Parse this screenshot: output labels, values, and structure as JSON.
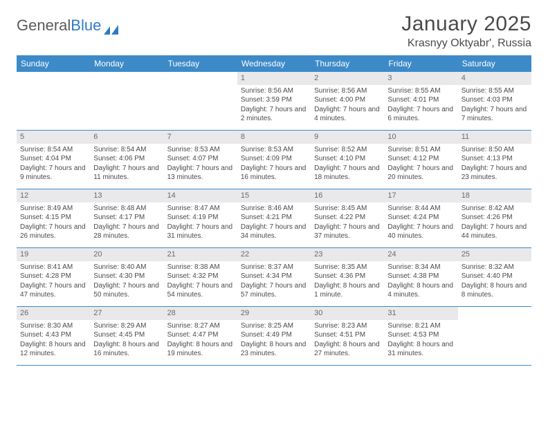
{
  "logo": {
    "text_gray": "General",
    "text_blue": "Blue"
  },
  "title": "January 2025",
  "location": "Krasnyy Oktyabr', Russia",
  "colors": {
    "header_blue": "#3d8ac9",
    "daynum_bg": "#e9e9eb",
    "text": "#4a4a4a",
    "rule": "#3d8ac9"
  },
  "days_of_week": [
    "Sunday",
    "Monday",
    "Tuesday",
    "Wednesday",
    "Thursday",
    "Friday",
    "Saturday"
  ],
  "weeks": [
    [
      {
        "empty": true
      },
      {
        "empty": true
      },
      {
        "empty": true
      },
      {
        "n": "1",
        "sunrise": "8:56 AM",
        "sunset": "3:59 PM",
        "dl": "7 hours and 2 minutes."
      },
      {
        "n": "2",
        "sunrise": "8:56 AM",
        "sunset": "4:00 PM",
        "dl": "7 hours and 4 minutes."
      },
      {
        "n": "3",
        "sunrise": "8:55 AM",
        "sunset": "4:01 PM",
        "dl": "7 hours and 6 minutes."
      },
      {
        "n": "4",
        "sunrise": "8:55 AM",
        "sunset": "4:03 PM",
        "dl": "7 hours and 7 minutes."
      }
    ],
    [
      {
        "n": "5",
        "sunrise": "8:54 AM",
        "sunset": "4:04 PM",
        "dl": "7 hours and 9 minutes."
      },
      {
        "n": "6",
        "sunrise": "8:54 AM",
        "sunset": "4:06 PM",
        "dl": "7 hours and 11 minutes."
      },
      {
        "n": "7",
        "sunrise": "8:53 AM",
        "sunset": "4:07 PM",
        "dl": "7 hours and 13 minutes."
      },
      {
        "n": "8",
        "sunrise": "8:53 AM",
        "sunset": "4:09 PM",
        "dl": "7 hours and 16 minutes."
      },
      {
        "n": "9",
        "sunrise": "8:52 AM",
        "sunset": "4:10 PM",
        "dl": "7 hours and 18 minutes."
      },
      {
        "n": "10",
        "sunrise": "8:51 AM",
        "sunset": "4:12 PM",
        "dl": "7 hours and 20 minutes."
      },
      {
        "n": "11",
        "sunrise": "8:50 AM",
        "sunset": "4:13 PM",
        "dl": "7 hours and 23 minutes."
      }
    ],
    [
      {
        "n": "12",
        "sunrise": "8:49 AM",
        "sunset": "4:15 PM",
        "dl": "7 hours and 26 minutes."
      },
      {
        "n": "13",
        "sunrise": "8:48 AM",
        "sunset": "4:17 PM",
        "dl": "7 hours and 28 minutes."
      },
      {
        "n": "14",
        "sunrise": "8:47 AM",
        "sunset": "4:19 PM",
        "dl": "7 hours and 31 minutes."
      },
      {
        "n": "15",
        "sunrise": "8:46 AM",
        "sunset": "4:21 PM",
        "dl": "7 hours and 34 minutes."
      },
      {
        "n": "16",
        "sunrise": "8:45 AM",
        "sunset": "4:22 PM",
        "dl": "7 hours and 37 minutes."
      },
      {
        "n": "17",
        "sunrise": "8:44 AM",
        "sunset": "4:24 PM",
        "dl": "7 hours and 40 minutes."
      },
      {
        "n": "18",
        "sunrise": "8:42 AM",
        "sunset": "4:26 PM",
        "dl": "7 hours and 44 minutes."
      }
    ],
    [
      {
        "n": "19",
        "sunrise": "8:41 AM",
        "sunset": "4:28 PM",
        "dl": "7 hours and 47 minutes."
      },
      {
        "n": "20",
        "sunrise": "8:40 AM",
        "sunset": "4:30 PM",
        "dl": "7 hours and 50 minutes."
      },
      {
        "n": "21",
        "sunrise": "8:38 AM",
        "sunset": "4:32 PM",
        "dl": "7 hours and 54 minutes."
      },
      {
        "n": "22",
        "sunrise": "8:37 AM",
        "sunset": "4:34 PM",
        "dl": "7 hours and 57 minutes."
      },
      {
        "n": "23",
        "sunrise": "8:35 AM",
        "sunset": "4:36 PM",
        "dl": "8 hours and 1 minute."
      },
      {
        "n": "24",
        "sunrise": "8:34 AM",
        "sunset": "4:38 PM",
        "dl": "8 hours and 4 minutes."
      },
      {
        "n": "25",
        "sunrise": "8:32 AM",
        "sunset": "4:40 PM",
        "dl": "8 hours and 8 minutes."
      }
    ],
    [
      {
        "n": "26",
        "sunrise": "8:30 AM",
        "sunset": "4:43 PM",
        "dl": "8 hours and 12 minutes."
      },
      {
        "n": "27",
        "sunrise": "8:29 AM",
        "sunset": "4:45 PM",
        "dl": "8 hours and 16 minutes."
      },
      {
        "n": "28",
        "sunrise": "8:27 AM",
        "sunset": "4:47 PM",
        "dl": "8 hours and 19 minutes."
      },
      {
        "n": "29",
        "sunrise": "8:25 AM",
        "sunset": "4:49 PM",
        "dl": "8 hours and 23 minutes."
      },
      {
        "n": "30",
        "sunrise": "8:23 AM",
        "sunset": "4:51 PM",
        "dl": "8 hours and 27 minutes."
      },
      {
        "n": "31",
        "sunrise": "8:21 AM",
        "sunset": "4:53 PM",
        "dl": "8 hours and 31 minutes."
      },
      {
        "empty": true
      }
    ]
  ],
  "labels": {
    "sunrise": "Sunrise:",
    "sunset": "Sunset:",
    "daylight": "Daylight:"
  }
}
